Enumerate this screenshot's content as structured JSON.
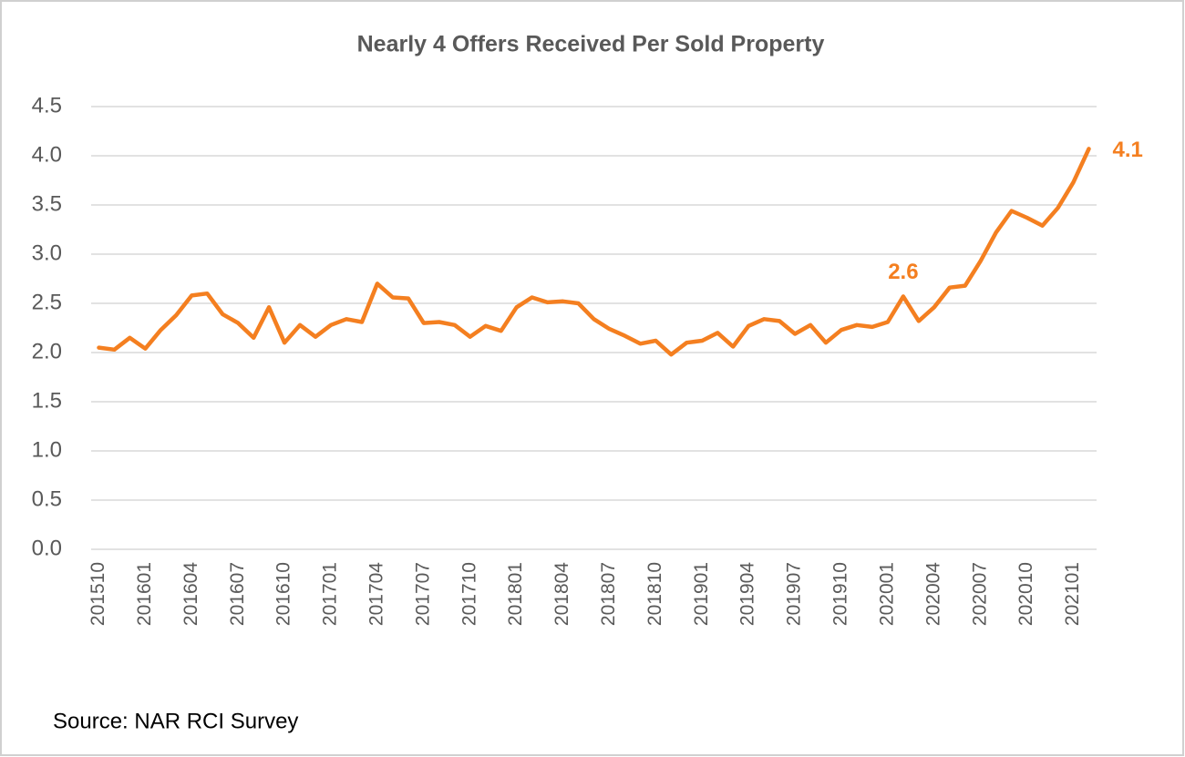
{
  "chart_data": {
    "type": "line",
    "title": "Nearly 4 Offers Received Per Sold Property",
    "source": "Source: NAR RCI Survey",
    "categories": [
      "201510",
      null,
      null,
      "201601",
      null,
      null,
      "201604",
      null,
      null,
      "201607",
      null,
      null,
      "201610",
      null,
      null,
      "201701",
      null,
      null,
      "201704",
      null,
      null,
      "201707",
      null,
      null,
      "201710",
      null,
      null,
      "201801",
      null,
      null,
      "201804",
      null,
      null,
      "201807",
      null,
      null,
      "201810",
      null,
      null,
      "201901",
      null,
      null,
      "201904",
      null,
      null,
      "201907",
      null,
      null,
      "201910",
      null,
      null,
      "202001",
      null,
      null,
      "202004",
      null,
      null,
      "202007",
      null,
      null,
      "202010",
      null,
      null,
      "202101",
      null
    ],
    "values": [
      2.05,
      2.03,
      2.15,
      2.04,
      2.23,
      2.38,
      2.58,
      2.6,
      2.39,
      2.3,
      2.15,
      2.46,
      2.1,
      2.28,
      2.16,
      2.28,
      2.34,
      2.31,
      2.7,
      2.56,
      2.55,
      2.3,
      2.31,
      2.28,
      2.16,
      2.27,
      2.22,
      2.46,
      2.56,
      2.51,
      2.52,
      2.5,
      2.34,
      2.24,
      2.17,
      2.09,
      2.12,
      1.98,
      2.1,
      2.12,
      2.2,
      2.06,
      2.27,
      2.34,
      2.32,
      2.19,
      2.28,
      2.1,
      2.23,
      2.28,
      2.26,
      2.31,
      2.57,
      2.32,
      2.46,
      2.66,
      2.68,
      2.93,
      3.22,
      3.44,
      3.37,
      3.29,
      3.47,
      3.73,
      4.07
    ],
    "value_labels": [
      null,
      null,
      null,
      null,
      null,
      null,
      null,
      null,
      null,
      null,
      null,
      null,
      null,
      null,
      null,
      null,
      null,
      null,
      null,
      null,
      null,
      null,
      null,
      null,
      null,
      null,
      null,
      null,
      null,
      null,
      null,
      null,
      null,
      null,
      null,
      null,
      null,
      null,
      null,
      null,
      null,
      null,
      null,
      null,
      null,
      null,
      null,
      null,
      null,
      null,
      null,
      null,
      "2.6",
      null,
      null,
      null,
      null,
      null,
      null,
      null,
      null,
      null,
      null,
      null,
      "4.1"
    ],
    "color": "#f47f20",
    "ylim": [
      0,
      4.5
    ],
    "yticks": [
      {
        "value": 0,
        "label": "0.0"
      },
      0.5,
      {
        "value": 1,
        "label": "1.0"
      },
      1.5,
      {
        "value": 2,
        "label": "2.0"
      },
      2.5,
      {
        "value": 3,
        "label": "3.0"
      },
      3.5,
      {
        "value": 4,
        "label": "4.0"
      },
      4.5
    ],
    "grid": true
  }
}
